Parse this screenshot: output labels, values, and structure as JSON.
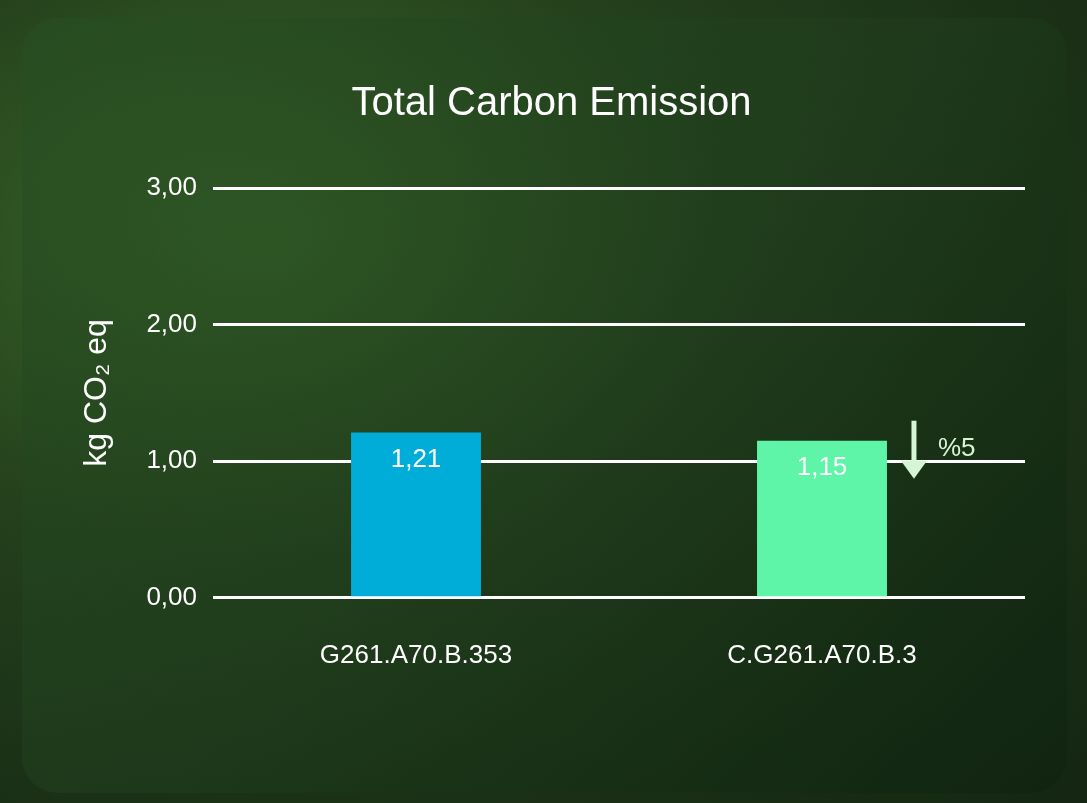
{
  "chart_data": {
    "type": "bar",
    "title": "Total Carbon Emission",
    "y_label": "kg CO₂ eq",
    "categories": [
      "G261.A70.B.353",
      "C.G261.A70.B.3"
    ],
    "values": [
      1.21,
      1.15
    ],
    "value_labels": [
      "1,21",
      "1,15"
    ],
    "colors": [
      "#00acd8",
      "#5ef5a8"
    ],
    "ylim": [
      0,
      3
    ],
    "yticks": [
      {
        "value": 0,
        "label": "0,00"
      },
      {
        "value": 1,
        "label": "1,00"
      },
      {
        "value": 2,
        "label": "2,00"
      },
      {
        "value": 3,
        "label": "3,00"
      }
    ],
    "grid": true,
    "data_labels": true,
    "annotations": [
      {
        "text": "%5",
        "category": "C.G261.A70.B.3"
      }
    ]
  }
}
